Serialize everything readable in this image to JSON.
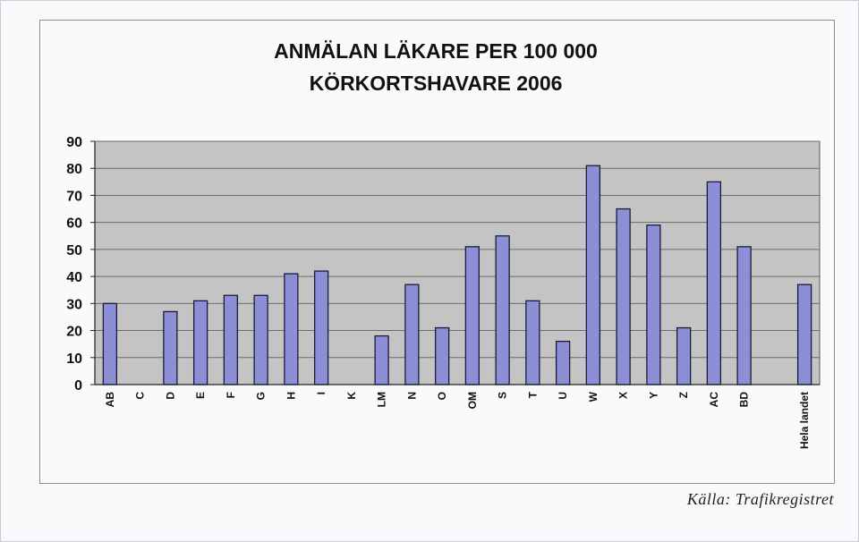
{
  "chart_data": {
    "type": "bar",
    "title": "ANMÄLAN LÄKARE PER 100 000",
    "subtitle": "KÖRKORTSHAVARE 2006",
    "categories": [
      "AB",
      "C",
      "D",
      "E",
      "F",
      "G",
      "H",
      "I",
      "K",
      "LM",
      "N",
      "O",
      "OM",
      "S",
      "T",
      "U",
      "W",
      "X",
      "Y",
      "Z",
      "AC",
      "BD",
      "",
      "Hela landet"
    ],
    "values": [
      30,
      0,
      27,
      31,
      33,
      33,
      41,
      42,
      0,
      18,
      37,
      21,
      51,
      55,
      31,
      16,
      81,
      65,
      59,
      21,
      75,
      51,
      null,
      37
    ],
    "ylim": [
      0,
      90
    ],
    "yticks": [
      0,
      10,
      20,
      30,
      40,
      50,
      60,
      70,
      80,
      90
    ],
    "grid": true,
    "colors": {
      "bar_fill": "#8c8fd6",
      "bar_stroke": "#1a1a3a",
      "plot_bg": "#c4c4c4",
      "gridline": "#6b6b6b"
    }
  },
  "source": "Källa: Trafikregistret"
}
